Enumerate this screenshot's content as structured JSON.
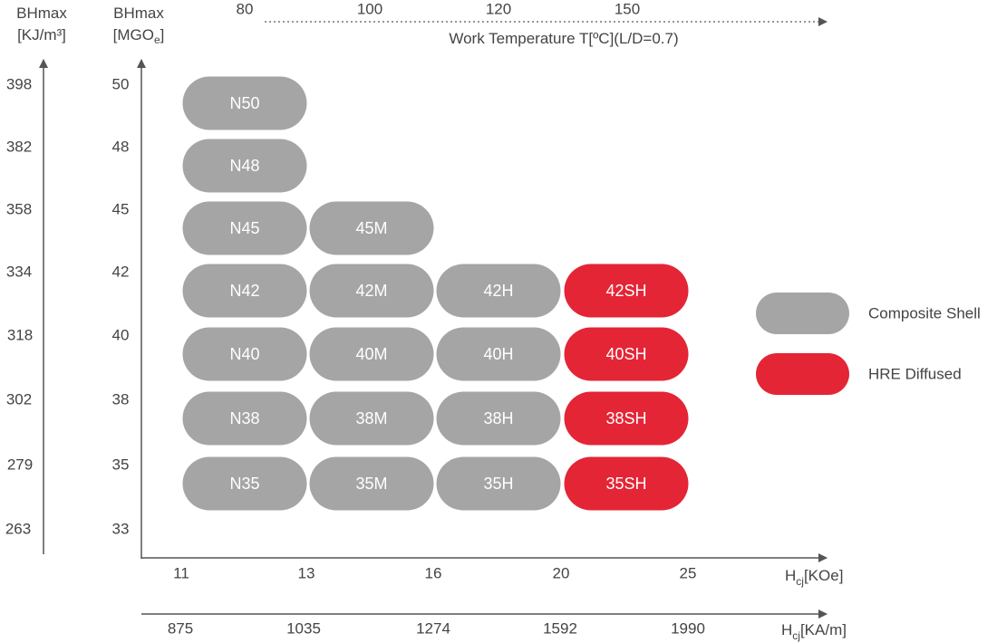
{
  "chart_data": {
    "type": "table",
    "left_axis": {
      "title_line1": "BHmax",
      "title_line2": "[KJ/m³]",
      "ticks": [
        "398",
        "382",
        "358",
        "334",
        "318",
        "302",
        "279",
        "263"
      ]
    },
    "y_axis": {
      "title_line1": "BHmax",
      "title_line2_main": "[MGO",
      "title_line2_sub": "e",
      "title_line2_end": "]",
      "ticks": [
        "50",
        "48",
        "45",
        "42",
        "40",
        "38",
        "35",
        "33"
      ]
    },
    "top_axis": {
      "label": "Work Temperature T[ºC](L/D=0.7)",
      "ticks": [
        "80",
        "100",
        "120",
        "150"
      ]
    },
    "x_axis": {
      "ticks": [
        "11",
        "13",
        "16",
        "20",
        "25"
      ],
      "label_main": "H",
      "label_sub": "cj",
      "label_end": "[KOe]"
    },
    "bottom_axis": {
      "ticks": [
        "875",
        "1035",
        "1274",
        "1592",
        "1990"
      ],
      "label_main": "H",
      "label_sub": "cj",
      "label_end": "[KA/m]"
    },
    "categories": [
      "N",
      "M",
      "H",
      "SH"
    ],
    "grades": [
      {
        "name": "N50",
        "bhmax": 50,
        "category": "N",
        "type": "composite"
      },
      {
        "name": "N48",
        "bhmax": 48,
        "category": "N",
        "type": "composite"
      },
      {
        "name": "N45",
        "bhmax": 45,
        "category": "N",
        "type": "composite"
      },
      {
        "name": "45M",
        "bhmax": 45,
        "category": "M",
        "type": "composite"
      },
      {
        "name": "N42",
        "bhmax": 42,
        "category": "N",
        "type": "composite"
      },
      {
        "name": "42M",
        "bhmax": 42,
        "category": "M",
        "type": "composite"
      },
      {
        "name": "42H",
        "bhmax": 42,
        "category": "H",
        "type": "composite"
      },
      {
        "name": "42SH",
        "bhmax": 42,
        "category": "SH",
        "type": "hre"
      },
      {
        "name": "N40",
        "bhmax": 40,
        "category": "N",
        "type": "composite"
      },
      {
        "name": "40M",
        "bhmax": 40,
        "category": "M",
        "type": "composite"
      },
      {
        "name": "40H",
        "bhmax": 40,
        "category": "H",
        "type": "composite"
      },
      {
        "name": "40SH",
        "bhmax": 40,
        "category": "SH",
        "type": "hre"
      },
      {
        "name": "N38",
        "bhmax": 38,
        "category": "N",
        "type": "composite"
      },
      {
        "name": "38M",
        "bhmax": 38,
        "category": "M",
        "type": "composite"
      },
      {
        "name": "38H",
        "bhmax": 38,
        "category": "H",
        "type": "composite"
      },
      {
        "name": "38SH",
        "bhmax": 38,
        "category": "SH",
        "type": "hre"
      },
      {
        "name": "N35",
        "bhmax": 35,
        "category": "N",
        "type": "composite"
      },
      {
        "name": "35M",
        "bhmax": 35,
        "category": "M",
        "type": "composite"
      },
      {
        "name": "35H",
        "bhmax": 35,
        "category": "H",
        "type": "composite"
      },
      {
        "name": "35SH",
        "bhmax": 35,
        "category": "SH",
        "type": "hre"
      }
    ],
    "legend": [
      {
        "key": "composite",
        "label": "Composite Shell"
      },
      {
        "key": "hre",
        "label": "HRE Diffused"
      }
    ],
    "legend_placement": "right",
    "colors": {
      "composite": "#a5a5a5",
      "hre": "#e42535",
      "axis": "#555555",
      "text": "#444444"
    }
  }
}
